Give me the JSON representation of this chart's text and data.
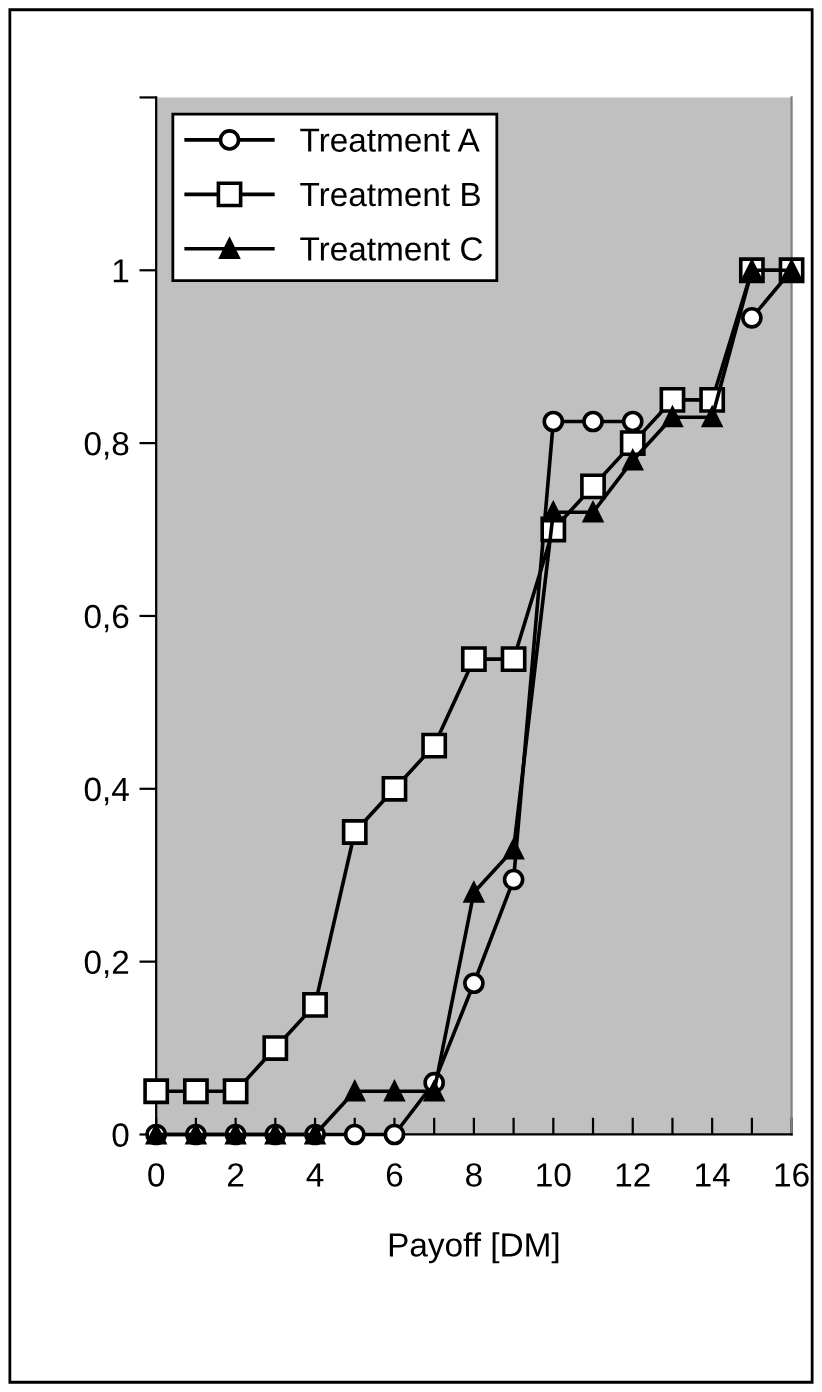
{
  "chart_data": {
    "type": "line",
    "xlabel": "Payoff [DM]",
    "x": [
      0,
      1,
      2,
      3,
      4,
      5,
      6,
      7,
      8,
      9,
      10,
      11,
      12,
      13,
      14,
      15,
      16
    ],
    "series": [
      {
        "name": "Treatment A",
        "color": "#000000",
        "marker": "circle",
        "values": [
          0,
          0,
          0,
          0,
          0,
          0,
          0,
          0.06,
          0.175,
          0.295,
          0.825,
          0.825,
          0.825,
          null,
          null,
          0.945,
          1.0
        ]
      },
      {
        "name": "Treatment B",
        "color": "#000000",
        "marker": "square",
        "values": [
          0.05,
          0.05,
          0.05,
          0.1,
          0.15,
          0.35,
          0.4,
          0.45,
          0.55,
          0.55,
          0.7,
          0.75,
          0.8,
          0.85,
          0.85,
          1.0,
          1.0
        ]
      },
      {
        "name": "Treatment C",
        "color": "#000000",
        "marker": "triangle",
        "values": [
          0,
          0,
          0,
          0,
          0,
          0.05,
          0.05,
          0.05,
          0.28,
          0.33,
          0.72,
          0.72,
          0.78,
          0.83,
          0.83,
          1.0,
          1.0
        ]
      }
    ],
    "xlim": [
      0,
      16
    ],
    "xticks": [
      0,
      {
        "value": 1,
        "label": null
      },
      2,
      {
        "value": 3,
        "label": null
      },
      4,
      {
        "value": 5,
        "label": null
      },
      6,
      {
        "value": 7,
        "label": null
      },
      8,
      {
        "value": 9,
        "label": null
      },
      10,
      {
        "value": 11,
        "label": null
      },
      12,
      {
        "value": 13,
        "label": null
      },
      14,
      {
        "value": 15,
        "label": null
      },
      16
    ],
    "ylim": [
      0,
      1.2
    ],
    "yticks": [
      0,
      {
        "value": 0.2,
        "label": "0,2"
      },
      {
        "value": 0.4,
        "label": "0,4"
      },
      {
        "value": 0.6,
        "label": "0,6"
      },
      {
        "value": 0.8,
        "label": "0,8"
      },
      1,
      {
        "value": 1.2,
        "label": null
      }
    ],
    "grid": false,
    "legend": "top left",
    "line_style": "solid"
  }
}
